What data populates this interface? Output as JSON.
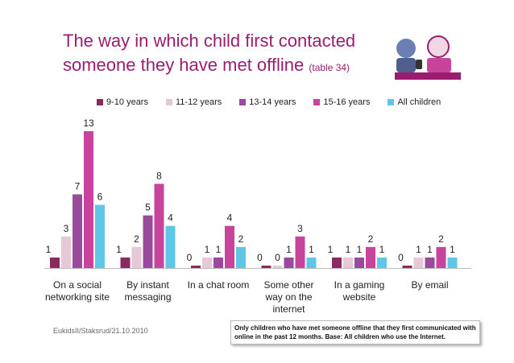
{
  "header": {
    "title_line1": "The way in which child first contacted",
    "title_line2": "someone they have met offline",
    "title_sub": "(table 34)",
    "logo_url": "www.eukidsonline.net"
  },
  "footer": {
    "credit": "EukidsII/Staksrud/21.10.2010",
    "note": "Only children who have met someone offline that they first communicated with online in the past 12 months. Base:  All children who use the Internet."
  },
  "colors": {
    "9-10": "#8b2a5e",
    "11-12": "#e6c8d6",
    "13-14": "#9a4a9c",
    "15-16": "#c8439b",
    "all": "#5fc6e6"
  },
  "chart_data": {
    "type": "bar",
    "title": "The way in which child first contacted someone they have met offline (table 34)",
    "categories": [
      "On a social networking site",
      "By instant messaging",
      "In a chat room",
      "Some other way on the internet",
      "In a gaming website",
      "By email"
    ],
    "category_labels": [
      [
        "On a social",
        "networking site"
      ],
      [
        "By instant",
        "messaging"
      ],
      [
        "In a chat room"
      ],
      [
        "Some other",
        "way on the",
        "internet"
      ],
      [
        "In a gaming",
        "website"
      ],
      [
        "By email"
      ]
    ],
    "series": [
      {
        "name": "9-10 years",
        "values": [
          1,
          1,
          0,
          0,
          1,
          0
        ]
      },
      {
        "name": "11-12 years",
        "values": [
          3,
          2,
          1,
          0,
          1,
          1
        ]
      },
      {
        "name": "13-14 years",
        "values": [
          7,
          5,
          1,
          1,
          1,
          1
        ]
      },
      {
        "name": "15-16 years",
        "values": [
          13,
          8,
          4,
          3,
          2,
          2
        ]
      },
      {
        "name": "All children",
        "values": [
          6,
          4,
          2,
          1,
          1,
          1
        ]
      }
    ],
    "ylim": [
      0,
      13
    ],
    "xlabel": "",
    "ylabel": ""
  }
}
